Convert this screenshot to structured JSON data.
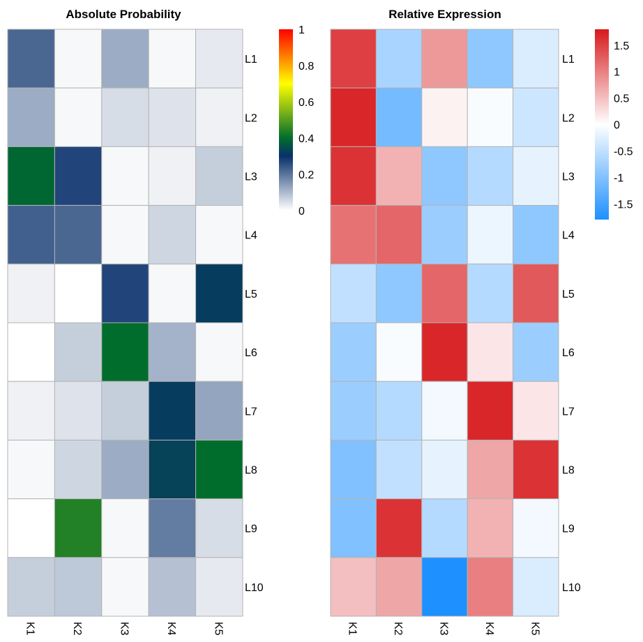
{
  "chart_data": [
    {
      "type": "heatmap",
      "title": "Absolute Probability",
      "rows": [
        "L1",
        "L2",
        "L3",
        "L4",
        "L5",
        "L6",
        "L7",
        "L8",
        "L9",
        "L10"
      ],
      "columns": [
        "K1",
        "K2",
        "K3",
        "K4",
        "K5"
      ],
      "values": [
        [
          0.22,
          0.01,
          0.12,
          0.01,
          0.03
        ],
        [
          0.12,
          0.01,
          0.05,
          0.04,
          0.02
        ],
        [
          0.39,
          0.27,
          0.01,
          0.02,
          0.07
        ],
        [
          0.23,
          0.22,
          0.01,
          0.06,
          0.01
        ],
        [
          0.02,
          0.0,
          0.27,
          0.01,
          0.32
        ],
        [
          0.0,
          0.07,
          0.4,
          0.11,
          0.01
        ],
        [
          0.02,
          0.04,
          0.07,
          0.32,
          0.13
        ],
        [
          0.01,
          0.06,
          0.12,
          0.33,
          0.4
        ],
        [
          0.0,
          0.44,
          0.01,
          0.19,
          0.05
        ],
        [
          0.07,
          0.08,
          0.01,
          0.09,
          0.03
        ]
      ],
      "legend": {
        "ticks": [
          "1",
          "0.8",
          "0.6",
          "0.4",
          "0.2",
          "0"
        ],
        "tick_values": [
          1,
          0.8,
          0.6,
          0.4,
          0.2,
          0
        ],
        "range": [
          0,
          1
        ],
        "gradient": [
          "#ffffff",
          "#08306b",
          "#006d2c",
          "#ffff00",
          "#ff0000"
        ],
        "gradient_stops": [
          0,
          0.3,
          0.4,
          0.7,
          1
        ]
      }
    },
    {
      "type": "heatmap",
      "title": "Relative Expression",
      "rows": [
        "L1",
        "L2",
        "L3",
        "L4",
        "L5",
        "L6",
        "L7",
        "L8",
        "L9",
        "L10"
      ],
      "columns": [
        "K1",
        "K2",
        "K3",
        "K4",
        "K5"
      ],
      "values": [
        [
          1.5,
          -0.7,
          0.8,
          -0.9,
          -0.3
        ],
        [
          1.7,
          -1.1,
          0.1,
          -0.05,
          -0.4
        ],
        [
          1.6,
          0.6,
          -0.9,
          -0.6,
          -0.2
        ],
        [
          1.1,
          1.2,
          -0.8,
          -0.15,
          -0.9
        ],
        [
          -0.5,
          -0.9,
          1.2,
          -0.6,
          1.3
        ],
        [
          -0.8,
          -0.05,
          1.7,
          0.2,
          -0.8
        ],
        [
          -0.8,
          -0.6,
          -0.1,
          1.7,
          0.2
        ],
        [
          -1.0,
          -0.5,
          -0.2,
          0.7,
          1.6
        ],
        [
          -1.0,
          1.6,
          -0.6,
          0.6,
          -0.1
        ],
        [
          0.5,
          0.7,
          -1.8,
          1.0,
          -0.3
        ]
      ],
      "legend": {
        "ticks": [
          "1.5",
          "1",
          "0.5",
          "0",
          "-0.5",
          "-1",
          "-1.5"
        ],
        "tick_values": [
          1.5,
          1,
          0.5,
          0,
          -0.5,
          -1,
          -1.5
        ],
        "range": [
          -1.8,
          1.8
        ],
        "gradient": [
          "#1e90ff",
          "#ffffff",
          "#d7191c"
        ],
        "gradient_stops": [
          0,
          0.5,
          1
        ]
      }
    }
  ]
}
